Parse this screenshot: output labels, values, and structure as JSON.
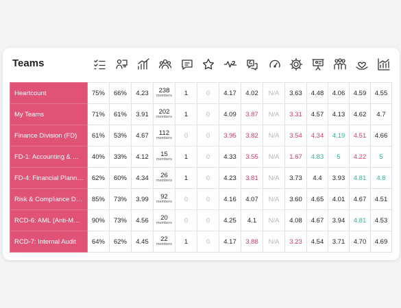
{
  "title": "Teams",
  "header_icons": [
    "checklist-icon",
    "person-board-icon",
    "bar-growth-icon",
    "group-icon",
    "chat-bubble-icon",
    "star-icon",
    "heartbeat-icon",
    "thumbs-up-icon",
    "gauge-icon",
    "gear-icon",
    "presentation-icon",
    "team-icon",
    "heart-hand-icon",
    "bar-chart-icon"
  ],
  "colors": {
    "accent": "#e05276",
    "red": "#d63b63",
    "green": "#2cb59a",
    "muted": "#b5b5bd"
  },
  "rows": [
    {
      "name": "Heartcount",
      "cells": [
        {
          "v": "75%"
        },
        {
          "v": "66%"
        },
        {
          "v": "4.23"
        },
        {
          "n": "238",
          "l": "members"
        },
        {
          "v": "1"
        },
        {
          "v": "0",
          "c": "muted"
        },
        {
          "v": "4.17"
        },
        {
          "v": "4.02"
        },
        {
          "v": "N/A",
          "c": "muted"
        },
        {
          "v": "3.63"
        },
        {
          "v": "4.48"
        },
        {
          "v": "4.06"
        },
        {
          "v": "4.59"
        },
        {
          "v": "4.55"
        }
      ]
    },
    {
      "name": "My Teams",
      "cells": [
        {
          "v": "71%"
        },
        {
          "v": "61%"
        },
        {
          "v": "3.91"
        },
        {
          "n": "202",
          "l": "members"
        },
        {
          "v": "1"
        },
        {
          "v": "0",
          "c": "muted"
        },
        {
          "v": "4.09"
        },
        {
          "v": "3.87",
          "c": "red"
        },
        {
          "v": "N/A",
          "c": "muted"
        },
        {
          "v": "3.31",
          "c": "red"
        },
        {
          "v": "4.57"
        },
        {
          "v": "4.13"
        },
        {
          "v": "4.62"
        },
        {
          "v": "4.7"
        }
      ]
    },
    {
      "name": "Finance Division (FD)",
      "cells": [
        {
          "v": "61%"
        },
        {
          "v": "53%"
        },
        {
          "v": "4.67"
        },
        {
          "n": "112",
          "l": "members"
        },
        {
          "v": "0",
          "c": "muted"
        },
        {
          "v": "0",
          "c": "muted"
        },
        {
          "v": "3.95",
          "c": "red"
        },
        {
          "v": "3.82",
          "c": "red"
        },
        {
          "v": "N/A",
          "c": "muted"
        },
        {
          "v": "3.54",
          "c": "red"
        },
        {
          "v": "4.34",
          "c": "red"
        },
        {
          "v": "4.19",
          "c": "green"
        },
        {
          "v": "4.51",
          "c": "red"
        },
        {
          "v": "4.66"
        }
      ]
    },
    {
      "name": "FD-1: Accounting & …",
      "cells": [
        {
          "v": "40%"
        },
        {
          "v": "33%"
        },
        {
          "v": "4.12"
        },
        {
          "n": "15",
          "l": "members"
        },
        {
          "v": "1"
        },
        {
          "v": "0",
          "c": "muted"
        },
        {
          "v": "4.33"
        },
        {
          "v": "3.55",
          "c": "red"
        },
        {
          "v": "N/A",
          "c": "muted"
        },
        {
          "v": "1.67",
          "c": "red"
        },
        {
          "v": "4.83",
          "c": "green"
        },
        {
          "v": "5",
          "c": "green"
        },
        {
          "v": "4.22",
          "c": "red"
        },
        {
          "v": "5",
          "c": "green"
        }
      ]
    },
    {
      "name": "FD-4: Financial Plann…",
      "cells": [
        {
          "v": "62%"
        },
        {
          "v": "60%"
        },
        {
          "v": "4.34"
        },
        {
          "n": "26",
          "l": "members"
        },
        {
          "v": "1"
        },
        {
          "v": "0",
          "c": "muted"
        },
        {
          "v": "4.23"
        },
        {
          "v": "3.81",
          "c": "red"
        },
        {
          "v": "N/A",
          "c": "muted"
        },
        {
          "v": "3.73"
        },
        {
          "v": "4.4"
        },
        {
          "v": "3.93"
        },
        {
          "v": "4.81",
          "c": "green"
        },
        {
          "v": "4.8",
          "c": "green"
        }
      ]
    },
    {
      "name": "Risk & Compliance D…",
      "cells": [
        {
          "v": "85%"
        },
        {
          "v": "73%"
        },
        {
          "v": "3.99"
        },
        {
          "n": "92",
          "l": "members"
        },
        {
          "v": "0",
          "c": "muted"
        },
        {
          "v": "0",
          "c": "muted"
        },
        {
          "v": "4.16"
        },
        {
          "v": "4.07"
        },
        {
          "v": "N/A",
          "c": "muted"
        },
        {
          "v": "3.60"
        },
        {
          "v": "4.65"
        },
        {
          "v": "4.01"
        },
        {
          "v": "4.67"
        },
        {
          "v": "4.51"
        }
      ]
    },
    {
      "name": "RCD-6: AML (Anti-M…",
      "cells": [
        {
          "v": "90%"
        },
        {
          "v": "73%"
        },
        {
          "v": "4.56"
        },
        {
          "n": "20",
          "l": "members"
        },
        {
          "v": "0",
          "c": "muted"
        },
        {
          "v": "0",
          "c": "muted"
        },
        {
          "v": "4.25"
        },
        {
          "v": "4.1"
        },
        {
          "v": "N/A",
          "c": "muted"
        },
        {
          "v": "4.08"
        },
        {
          "v": "4.67"
        },
        {
          "v": "3.94"
        },
        {
          "v": "4.81",
          "c": "green"
        },
        {
          "v": "4.53"
        }
      ]
    },
    {
      "name": "RCD-7: Internal Audit",
      "cells": [
        {
          "v": "64%"
        },
        {
          "v": "62%"
        },
        {
          "v": "4.45"
        },
        {
          "n": "22",
          "l": "members"
        },
        {
          "v": "1"
        },
        {
          "v": "0",
          "c": "muted"
        },
        {
          "v": "4.17"
        },
        {
          "v": "3.88",
          "c": "red"
        },
        {
          "v": "N/A",
          "c": "muted"
        },
        {
          "v": "3.23",
          "c": "red"
        },
        {
          "v": "4.54"
        },
        {
          "v": "3.71"
        },
        {
          "v": "4.70"
        },
        {
          "v": "4.69"
        }
      ]
    }
  ]
}
